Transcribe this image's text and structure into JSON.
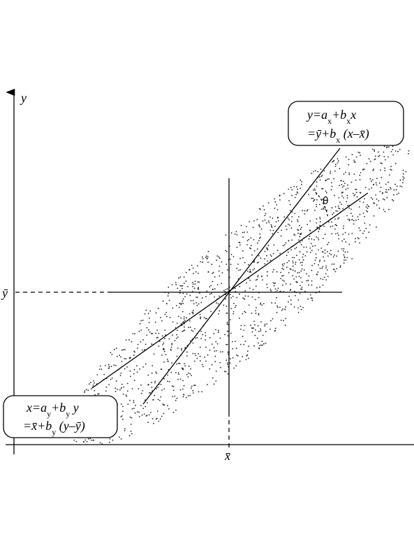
{
  "axis_labels": {
    "y": "y",
    "x_mean": "x̄",
    "y_mean": "ȳ"
  },
  "angle_label": "θ",
  "boxes": [
    {
      "lines": [
        [
          {
            "text": "y=a"
          },
          {
            "text": "x",
            "sub": true
          },
          {
            "text": "+b"
          },
          {
            "text": "x",
            "sub": true
          },
          {
            "text": "x"
          }
        ],
        [
          {
            "text": "=ȳ+b"
          },
          {
            "text": "x",
            "sub": true
          },
          {
            "text": " (x–x̄)"
          }
        ]
      ]
    },
    {
      "lines": [
        [
          {
            "text": "x=a"
          },
          {
            "text": "y",
            "sub": true
          },
          {
            "text": "+b"
          },
          {
            "text": "y",
            "sub": true
          },
          {
            "text": " y"
          }
        ],
        [
          {
            "text": "=x̄+b"
          },
          {
            "text": "y",
            "sub": true
          },
          {
            "text": " (y–ȳ)"
          }
        ]
      ]
    }
  ]
}
